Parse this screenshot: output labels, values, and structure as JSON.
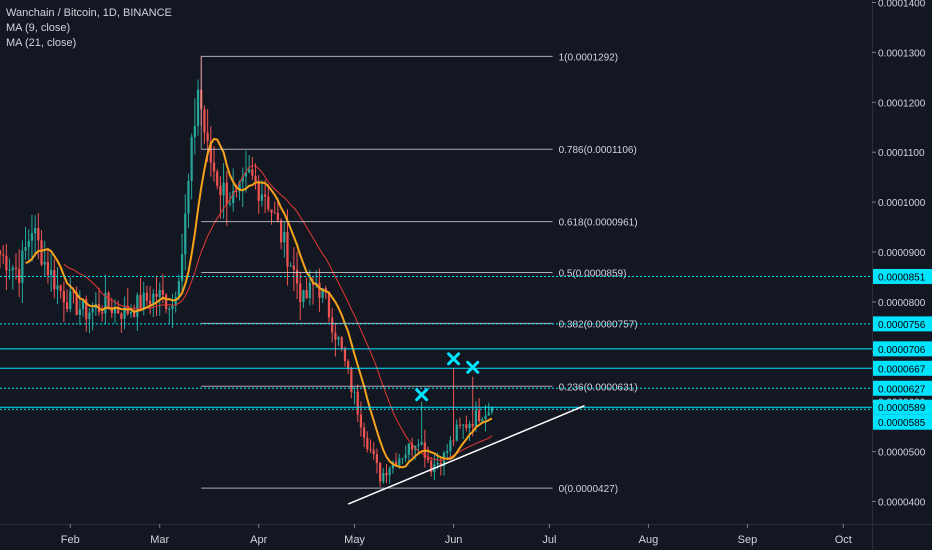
{
  "legend": {
    "title": "Wanchain / Bitcoin, 1D, BINANCE",
    "ma1": "MA (9, close)",
    "ma2": "MA (21, close)"
  },
  "colors": {
    "background": "#131722",
    "bull": "#26a69a",
    "bear": "#ef5350",
    "ma9": "#f7a21b",
    "ma21": "#e53935",
    "cyan": "#00e5ff",
    "fib": "#d1d4dc",
    "axis_text": "#d1d4dc"
  },
  "chart_data": {
    "type": "candlestick",
    "title": "Wanchain / Bitcoin, 1D, BINANCE",
    "x_axis": {
      "type": "date",
      "range": [
        "2019-01-10",
        "2019-10-10"
      ],
      "tick_labels": [
        "Feb",
        "Mar",
        "Apr",
        "May",
        "Jun",
        "Jul",
        "Aug",
        "Sep",
        "Oct"
      ],
      "tick_dates": [
        "2019-02-01",
        "2019-03-01",
        "2019-04-01",
        "2019-05-01",
        "2019-06-01",
        "2019-07-01",
        "2019-08-01",
        "2019-09-01",
        "2019-10-01"
      ]
    },
    "y_axis": {
      "range": [
        3.55e-05,
        0.0001405
      ],
      "tick_values": [
        4e-05,
        5e-05,
        6e-05,
        7e-05,
        8e-05,
        9e-05,
        0.0001,
        0.00011,
        0.00012,
        0.00013,
        0.00014
      ],
      "tick_labels": [
        "0.0000400",
        "0.0000500",
        "0.0000600",
        "0.0000700",
        "0.0000800",
        "0.0000900",
        "0.0001000",
        "0.0001100",
        "0.0001200",
        "0.0001300",
        "0.0001400"
      ]
    },
    "fib_levels": [
      {
        "label": "1(0.0001292)",
        "value": 0.0001292
      },
      {
        "label": "0.786(0.0001106)",
        "value": 0.0001106
      },
      {
        "label": "0.618(0.0000961)",
        "value": 9.61e-05
      },
      {
        "label": "0.5(0.0000859)",
        "value": 8.59e-05
      },
      {
        "label": "0.382(0.0000757)",
        "value": 7.57e-05
      },
      {
        "label": "0.236(0.0000631)",
        "value": 6.31e-05
      },
      {
        "label": "0(0.0000427)",
        "value": 4.27e-05
      }
    ],
    "fib_start_date": "2019-03-14",
    "fib_end_date": "2019-07-02",
    "horizontal_lines": [
      {
        "label": "0.0000851",
        "value": 8.51e-05,
        "style": "dotted"
      },
      {
        "label": "0.0000756",
        "value": 7.56e-05,
        "style": "dotted"
      },
      {
        "label": "0.0000706",
        "value": 7.06e-05,
        "style": "solid"
      },
      {
        "label": "0.0000667",
        "value": 6.67e-05,
        "style": "solid"
      },
      {
        "label": "0.0000627",
        "value": 6.27e-05,
        "style": "dotted"
      },
      {
        "label": "0.0000589",
        "value": 5.89e-05,
        "style": "solid"
      },
      {
        "label": "0.0000585",
        "value": 5.85e-05,
        "style": "dotted"
      }
    ],
    "trendline": {
      "from": [
        "2019-04-29",
        3.95e-05
      ],
      "to": [
        "2019-07-12",
        5.92e-05
      ]
    },
    "x_marks": [
      {
        "date": "2019-05-22",
        "value": 6.14e-05
      },
      {
        "date": "2019-06-01",
        "value": 6.86e-05
      },
      {
        "date": "2019-06-07",
        "value": 6.69e-05
      }
    ],
    "candles": [
      {
        "date": "2019-01-10",
        "close": 8.95e-05
      },
      {
        "date": "2019-01-16",
        "close": 8.6e-05
      },
      {
        "date": "2019-01-20",
        "close": 9.5e-05
      },
      {
        "date": "2019-01-24",
        "close": 8.8e-05
      },
      {
        "date": "2019-01-28",
        "close": 8.3e-05
      },
      {
        "date": "2019-02-01",
        "close": 8e-05
      },
      {
        "date": "2019-02-06",
        "close": 7.8e-05
      },
      {
        "date": "2019-02-12",
        "close": 7.95e-05
      },
      {
        "date": "2019-02-18",
        "close": 7.8e-05
      },
      {
        "date": "2019-02-24",
        "close": 8e-05
      },
      {
        "date": "2019-02-28",
        "close": 8.15e-05
      },
      {
        "date": "2019-03-05",
        "close": 7.95e-05
      },
      {
        "date": "2019-03-08",
        "close": 9e-05
      },
      {
        "date": "2019-03-11",
        "close": 0.00011
      },
      {
        "date": "2019-03-13",
        "close": 0.000123
      },
      {
        "date": "2019-03-16",
        "close": 0.00011
      },
      {
        "date": "2019-03-20",
        "close": 0.000103
      },
      {
        "date": "2019-03-25",
        "close": 0.0001
      },
      {
        "date": "2019-03-29",
        "close": 0.000105
      },
      {
        "date": "2019-04-03",
        "close": 0.000102
      },
      {
        "date": "2019-04-07",
        "close": 9.5e-05
      },
      {
        "date": "2019-04-11",
        "close": 8.8e-05
      },
      {
        "date": "2019-04-15",
        "close": 8e-05
      },
      {
        "date": "2019-04-19",
        "close": 8.4e-05
      },
      {
        "date": "2019-04-22",
        "close": 8e-05
      },
      {
        "date": "2019-04-26",
        "close": 7.2e-05
      },
      {
        "date": "2019-04-30",
        "close": 6.3e-05
      },
      {
        "date": "2019-05-05",
        "close": 5.2e-05
      },
      {
        "date": "2019-05-09",
        "close": 4.5e-05
      },
      {
        "date": "2019-05-13",
        "close": 4.8e-05
      },
      {
        "date": "2019-05-17",
        "close": 5e-05
      },
      {
        "date": "2019-05-21",
        "close": 5.3e-05
      },
      {
        "date": "2019-05-25",
        "close": 4.7e-05
      },
      {
        "date": "2019-05-29",
        "close": 4.9e-05
      },
      {
        "date": "2019-06-02",
        "close": 5.4e-05
      },
      {
        "date": "2019-06-06",
        "close": 5.6e-05
      },
      {
        "date": "2019-06-10",
        "close": 5.8e-05
      },
      {
        "date": "2019-06-13",
        "close": 5.89e-05
      }
    ]
  }
}
